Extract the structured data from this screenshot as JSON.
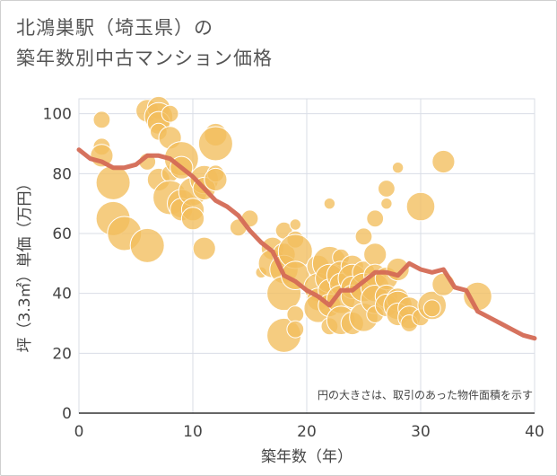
{
  "chart_data": {
    "type": "scatter",
    "title_lines": [
      "北鴻巣駅（埼玉県）の",
      "築年数別中古マンション価格"
    ],
    "xlabel": "築年数（年）",
    "ylabel": "坪（3.3㎡）単価（万円）",
    "xlim": [
      0,
      40
    ],
    "ylim": [
      0,
      105
    ],
    "xticks": [
      "0",
      "10",
      "20",
      "30",
      "40"
    ],
    "yticks": [
      "0",
      "20",
      "40",
      "60",
      "80",
      "100"
    ],
    "grid": true,
    "annotation": "円の大きさは、取引のあった物件面積を示す",
    "colors": {
      "bubble_fill": "#f2be5c",
      "bubble_stroke": "#ffffff",
      "line": "#d46a55",
      "grid": "#d9dde6",
      "axis": "#333333"
    },
    "series": [
      {
        "type": "bubble",
        "points": [
          {
            "x": 2,
            "y": 98,
            "s": 2
          },
          {
            "x": 2,
            "y": 89,
            "s": 2
          },
          {
            "x": 2,
            "y": 86,
            "s": 3
          },
          {
            "x": 3,
            "y": 77,
            "s": 5
          },
          {
            "x": 3,
            "y": 65,
            "s": 5
          },
          {
            "x": 4,
            "y": 60,
            "s": 5
          },
          {
            "x": 6,
            "y": 101,
            "s": 3
          },
          {
            "x": 6,
            "y": 84,
            "s": 2
          },
          {
            "x": 6,
            "y": 56,
            "s": 5
          },
          {
            "x": 7,
            "y": 102,
            "s": 3
          },
          {
            "x": 7,
            "y": 99,
            "s": 4
          },
          {
            "x": 7,
            "y": 97,
            "s": 3
          },
          {
            "x": 7,
            "y": 94,
            "s": 2
          },
          {
            "x": 7,
            "y": 78,
            "s": 3
          },
          {
            "x": 8,
            "y": 100,
            "s": 2
          },
          {
            "x": 8,
            "y": 92,
            "s": 3
          },
          {
            "x": 8,
            "y": 80,
            "s": 2
          },
          {
            "x": 8,
            "y": 72,
            "s": 5
          },
          {
            "x": 9,
            "y": 85,
            "s": 5
          },
          {
            "x": 9,
            "y": 82,
            "s": 3
          },
          {
            "x": 9,
            "y": 70,
            "s": 4
          },
          {
            "x": 9,
            "y": 68,
            "s": 3
          },
          {
            "x": 10,
            "y": 74,
            "s": 4
          },
          {
            "x": 10,
            "y": 68,
            "s": 3
          },
          {
            "x": 10,
            "y": 65,
            "s": 3
          },
          {
            "x": 11,
            "y": 78,
            "s": 4
          },
          {
            "x": 11,
            "y": 75,
            "s": 3
          },
          {
            "x": 11,
            "y": 55,
            "s": 3
          },
          {
            "x": 12,
            "y": 93,
            "s": 3
          },
          {
            "x": 12,
            "y": 90,
            "s": 5
          },
          {
            "x": 12,
            "y": 80,
            "s": 2
          },
          {
            "x": 12,
            "y": 78,
            "s": 3
          },
          {
            "x": 14,
            "y": 62,
            "s": 2
          },
          {
            "x": 15,
            "y": 65,
            "s": 2
          },
          {
            "x": 16,
            "y": 47,
            "s": 1
          },
          {
            "x": 17,
            "y": 55,
            "s": 3
          },
          {
            "x": 17,
            "y": 50,
            "s": 4
          },
          {
            "x": 18,
            "y": 61,
            "s": 2
          },
          {
            "x": 18,
            "y": 53,
            "s": 3
          },
          {
            "x": 18,
            "y": 48,
            "s": 4
          },
          {
            "x": 18,
            "y": 40,
            "s": 5
          },
          {
            "x": 18,
            "y": 26,
            "s": 5
          },
          {
            "x": 19,
            "y": 63,
            "s": 1
          },
          {
            "x": 19,
            "y": 58,
            "s": 2
          },
          {
            "x": 19,
            "y": 54,
            "s": 5
          },
          {
            "x": 19,
            "y": 46,
            "s": 4
          },
          {
            "x": 19,
            "y": 33,
            "s": 2
          },
          {
            "x": 19,
            "y": 28,
            "s": 2
          },
          {
            "x": 21,
            "y": 49,
            "s": 3
          },
          {
            "x": 21,
            "y": 42,
            "s": 4
          },
          {
            "x": 21,
            "y": 38,
            "s": 3
          },
          {
            "x": 21,
            "y": 35,
            "s": 4
          },
          {
            "x": 22,
            "y": 70,
            "s": 1
          },
          {
            "x": 22,
            "y": 50,
            "s": 5
          },
          {
            "x": 22,
            "y": 45,
            "s": 4
          },
          {
            "x": 22,
            "y": 41,
            "s": 3
          },
          {
            "x": 22,
            "y": 36,
            "s": 3
          },
          {
            "x": 22,
            "y": 29,
            "s": 2
          },
          {
            "x": 23,
            "y": 52,
            "s": 2
          },
          {
            "x": 23,
            "y": 46,
            "s": 4
          },
          {
            "x": 23,
            "y": 43,
            "s": 3
          },
          {
            "x": 23,
            "y": 38,
            "s": 4
          },
          {
            "x": 23,
            "y": 31,
            "s": 4
          },
          {
            "x": 24,
            "y": 49,
            "s": 3
          },
          {
            "x": 24,
            "y": 45,
            "s": 4
          },
          {
            "x": 24,
            "y": 42,
            "s": 3
          },
          {
            "x": 24,
            "y": 39,
            "s": 3
          },
          {
            "x": 24,
            "y": 30,
            "s": 3
          },
          {
            "x": 25,
            "y": 59,
            "s": 2
          },
          {
            "x": 25,
            "y": 47,
            "s": 3
          },
          {
            "x": 25,
            "y": 42,
            "s": 4
          },
          {
            "x": 25,
            "y": 32,
            "s": 4
          },
          {
            "x": 26,
            "y": 65,
            "s": 2
          },
          {
            "x": 26,
            "y": 53,
            "s": 3
          },
          {
            "x": 26,
            "y": 46,
            "s": 3
          },
          {
            "x": 26,
            "y": 42,
            "s": 4
          },
          {
            "x": 26,
            "y": 38,
            "s": 4
          },
          {
            "x": 26,
            "y": 33,
            "s": 2
          },
          {
            "x": 27,
            "y": 75,
            "s": 2
          },
          {
            "x": 27,
            "y": 70,
            "s": 1
          },
          {
            "x": 27,
            "y": 45,
            "s": 3
          },
          {
            "x": 27,
            "y": 39,
            "s": 3
          },
          {
            "x": 27,
            "y": 36,
            "s": 3
          },
          {
            "x": 28,
            "y": 82,
            "s": 1
          },
          {
            "x": 28,
            "y": 48,
            "s": 3
          },
          {
            "x": 28,
            "y": 38,
            "s": 3
          },
          {
            "x": 28,
            "y": 36,
            "s": 4
          },
          {
            "x": 28,
            "y": 33,
            "s": 3
          },
          {
            "x": 29,
            "y": 35,
            "s": 3
          },
          {
            "x": 29,
            "y": 32,
            "s": 3
          },
          {
            "x": 29,
            "y": 30,
            "s": 2
          },
          {
            "x": 30,
            "y": 69,
            "s": 4
          },
          {
            "x": 30,
            "y": 32,
            "s": 2
          },
          {
            "x": 31,
            "y": 36,
            "s": 4
          },
          {
            "x": 31,
            "y": 35,
            "s": 2
          },
          {
            "x": 32,
            "y": 84,
            "s": 3
          },
          {
            "x": 32,
            "y": 43,
            "s": 3
          },
          {
            "x": 35,
            "y": 39,
            "s": 4
          }
        ]
      },
      {
        "type": "line",
        "x": [
          0,
          1,
          2,
          3,
          4,
          5,
          6,
          7,
          8,
          9,
          10,
          11,
          12,
          13,
          14,
          15,
          16,
          17,
          18,
          19,
          20,
          21,
          22,
          23,
          24,
          25,
          26,
          27,
          28,
          29,
          30,
          31,
          32,
          33,
          34,
          35,
          36,
          37,
          38,
          39,
          40
        ],
        "y": [
          88,
          85,
          84,
          82,
          82,
          83,
          86,
          86,
          85,
          82,
          79,
          75,
          71,
          69,
          66,
          61,
          57,
          54,
          46,
          44,
          41,
          39,
          36,
          41,
          41,
          44,
          47,
          47,
          46,
          50,
          48,
          47,
          48,
          42,
          41,
          34,
          32,
          30,
          28,
          26,
          25
        ]
      }
    ]
  }
}
